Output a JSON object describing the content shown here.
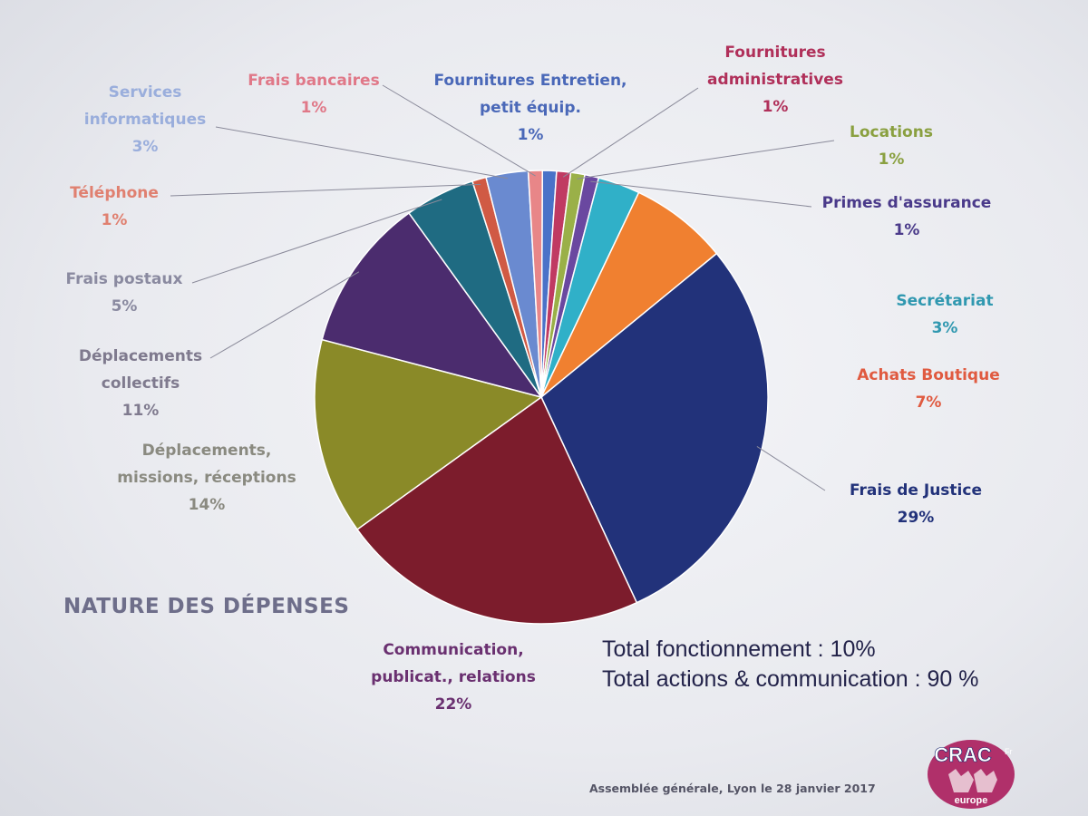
{
  "heading": "NATURE DES DÉPENSES",
  "totals": {
    "line1": "Total fonctionnement : 10%",
    "line2": "Total actions & communication : 90 %"
  },
  "footer": "Assemblée générale, Lyon le 28 janvier 2017",
  "logo": {
    "text": "CRAC",
    "subtext": "europe"
  },
  "chart_data": {
    "type": "pie",
    "title": "NATURE DES DÉPENSES",
    "slices": [
      {
        "label": [
          "Frais de Justice"
        ],
        "pct_text": "29%",
        "value": 29,
        "color": "#22327a",
        "label_color": "#22327a"
      },
      {
        "label": [
          "Communication,",
          "publicat., relations"
        ],
        "pct_text": "22%",
        "value": 22,
        "color": "#7c1c2c",
        "label_color": "#6a3070"
      },
      {
        "label": [
          "Déplacements,",
          "missions, réceptions"
        ],
        "pct_text": "14%",
        "value": 14,
        "color": "#8a8a28",
        "label_color": "#8a8a80"
      },
      {
        "label": [
          "Déplacements",
          "collectifs"
        ],
        "pct_text": "11%",
        "value": 11,
        "color": "#4b2c6e",
        "label_color": "#7f7a8e"
      },
      {
        "label": [
          "Frais postaux"
        ],
        "pct_text": "5%",
        "value": 5,
        "color": "#1f6b82",
        "label_color": "#8a8aa0"
      },
      {
        "label": [
          "Téléphone"
        ],
        "pct_text": "1%",
        "value": 1,
        "color": "#d05a44",
        "label_color": "#e08070"
      },
      {
        "label": [
          "Services",
          "informatiques"
        ],
        "pct_text": "3%",
        "value": 3,
        "color": "#6a8ad0",
        "label_color": "#9aaedc"
      },
      {
        "label": [
          "Frais bancaires"
        ],
        "pct_text": "1%",
        "value": 1,
        "color": "#e88688",
        "label_color": "#e07888"
      },
      {
        "label": [
          "Fournitures Entretien,",
          "petit équip."
        ],
        "pct_text": "1%",
        "value": 1,
        "color": "#4a72c8",
        "label_color": "#4a68b8"
      },
      {
        "label": [
          "Fournitures",
          "administratives"
        ],
        "pct_text": "1%",
        "value": 1,
        "color": "#c03a62",
        "label_color": "#b0305a"
      },
      {
        "label": [
          "Locations"
        ],
        "pct_text": "1%",
        "value": 1,
        "color": "#9ab048",
        "label_color": "#8aa040"
      },
      {
        "label": [
          "Primes d'assurance"
        ],
        "pct_text": "1%",
        "value": 1,
        "color": "#6a48a0",
        "label_color": "#4a3a8a"
      },
      {
        "label": [
          "Secrétariat"
        ],
        "pct_text": "3%",
        "value": 3,
        "color": "#30b0c8",
        "label_color": "#3098b0"
      },
      {
        "label": [
          "Achats  Boutique"
        ],
        "pct_text": "7%",
        "value": 7,
        "color": "#f08030",
        "label_color": "#e05a40"
      }
    ]
  }
}
